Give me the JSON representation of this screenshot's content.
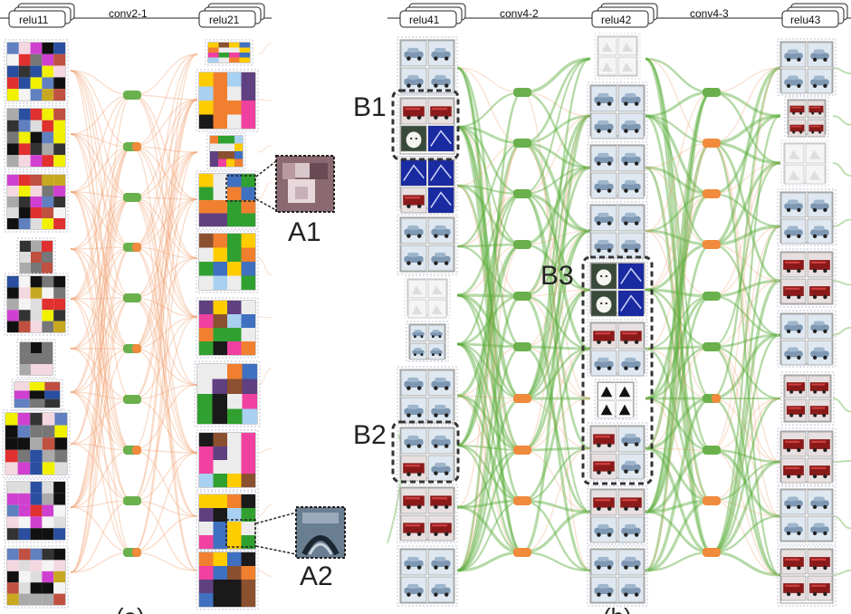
{
  "panel_a": {
    "layers": [
      "relu11",
      "relu21"
    ],
    "connection": "conv2-1",
    "callouts": [
      "A1",
      "A2"
    ],
    "caption": "(a)"
  },
  "panel_b": {
    "layers": [
      "relu41",
      "relu42",
      "relu43"
    ],
    "connections": [
      "conv4-2",
      "conv4-3"
    ],
    "callouts": [
      "B1",
      "B2",
      "B3"
    ],
    "caption": "(b)"
  },
  "colors": {
    "edge_a": "#f0a070",
    "edge_b": "#5cae3c",
    "node_green": "#6ab04c",
    "node_orange": "#f08a3c"
  }
}
